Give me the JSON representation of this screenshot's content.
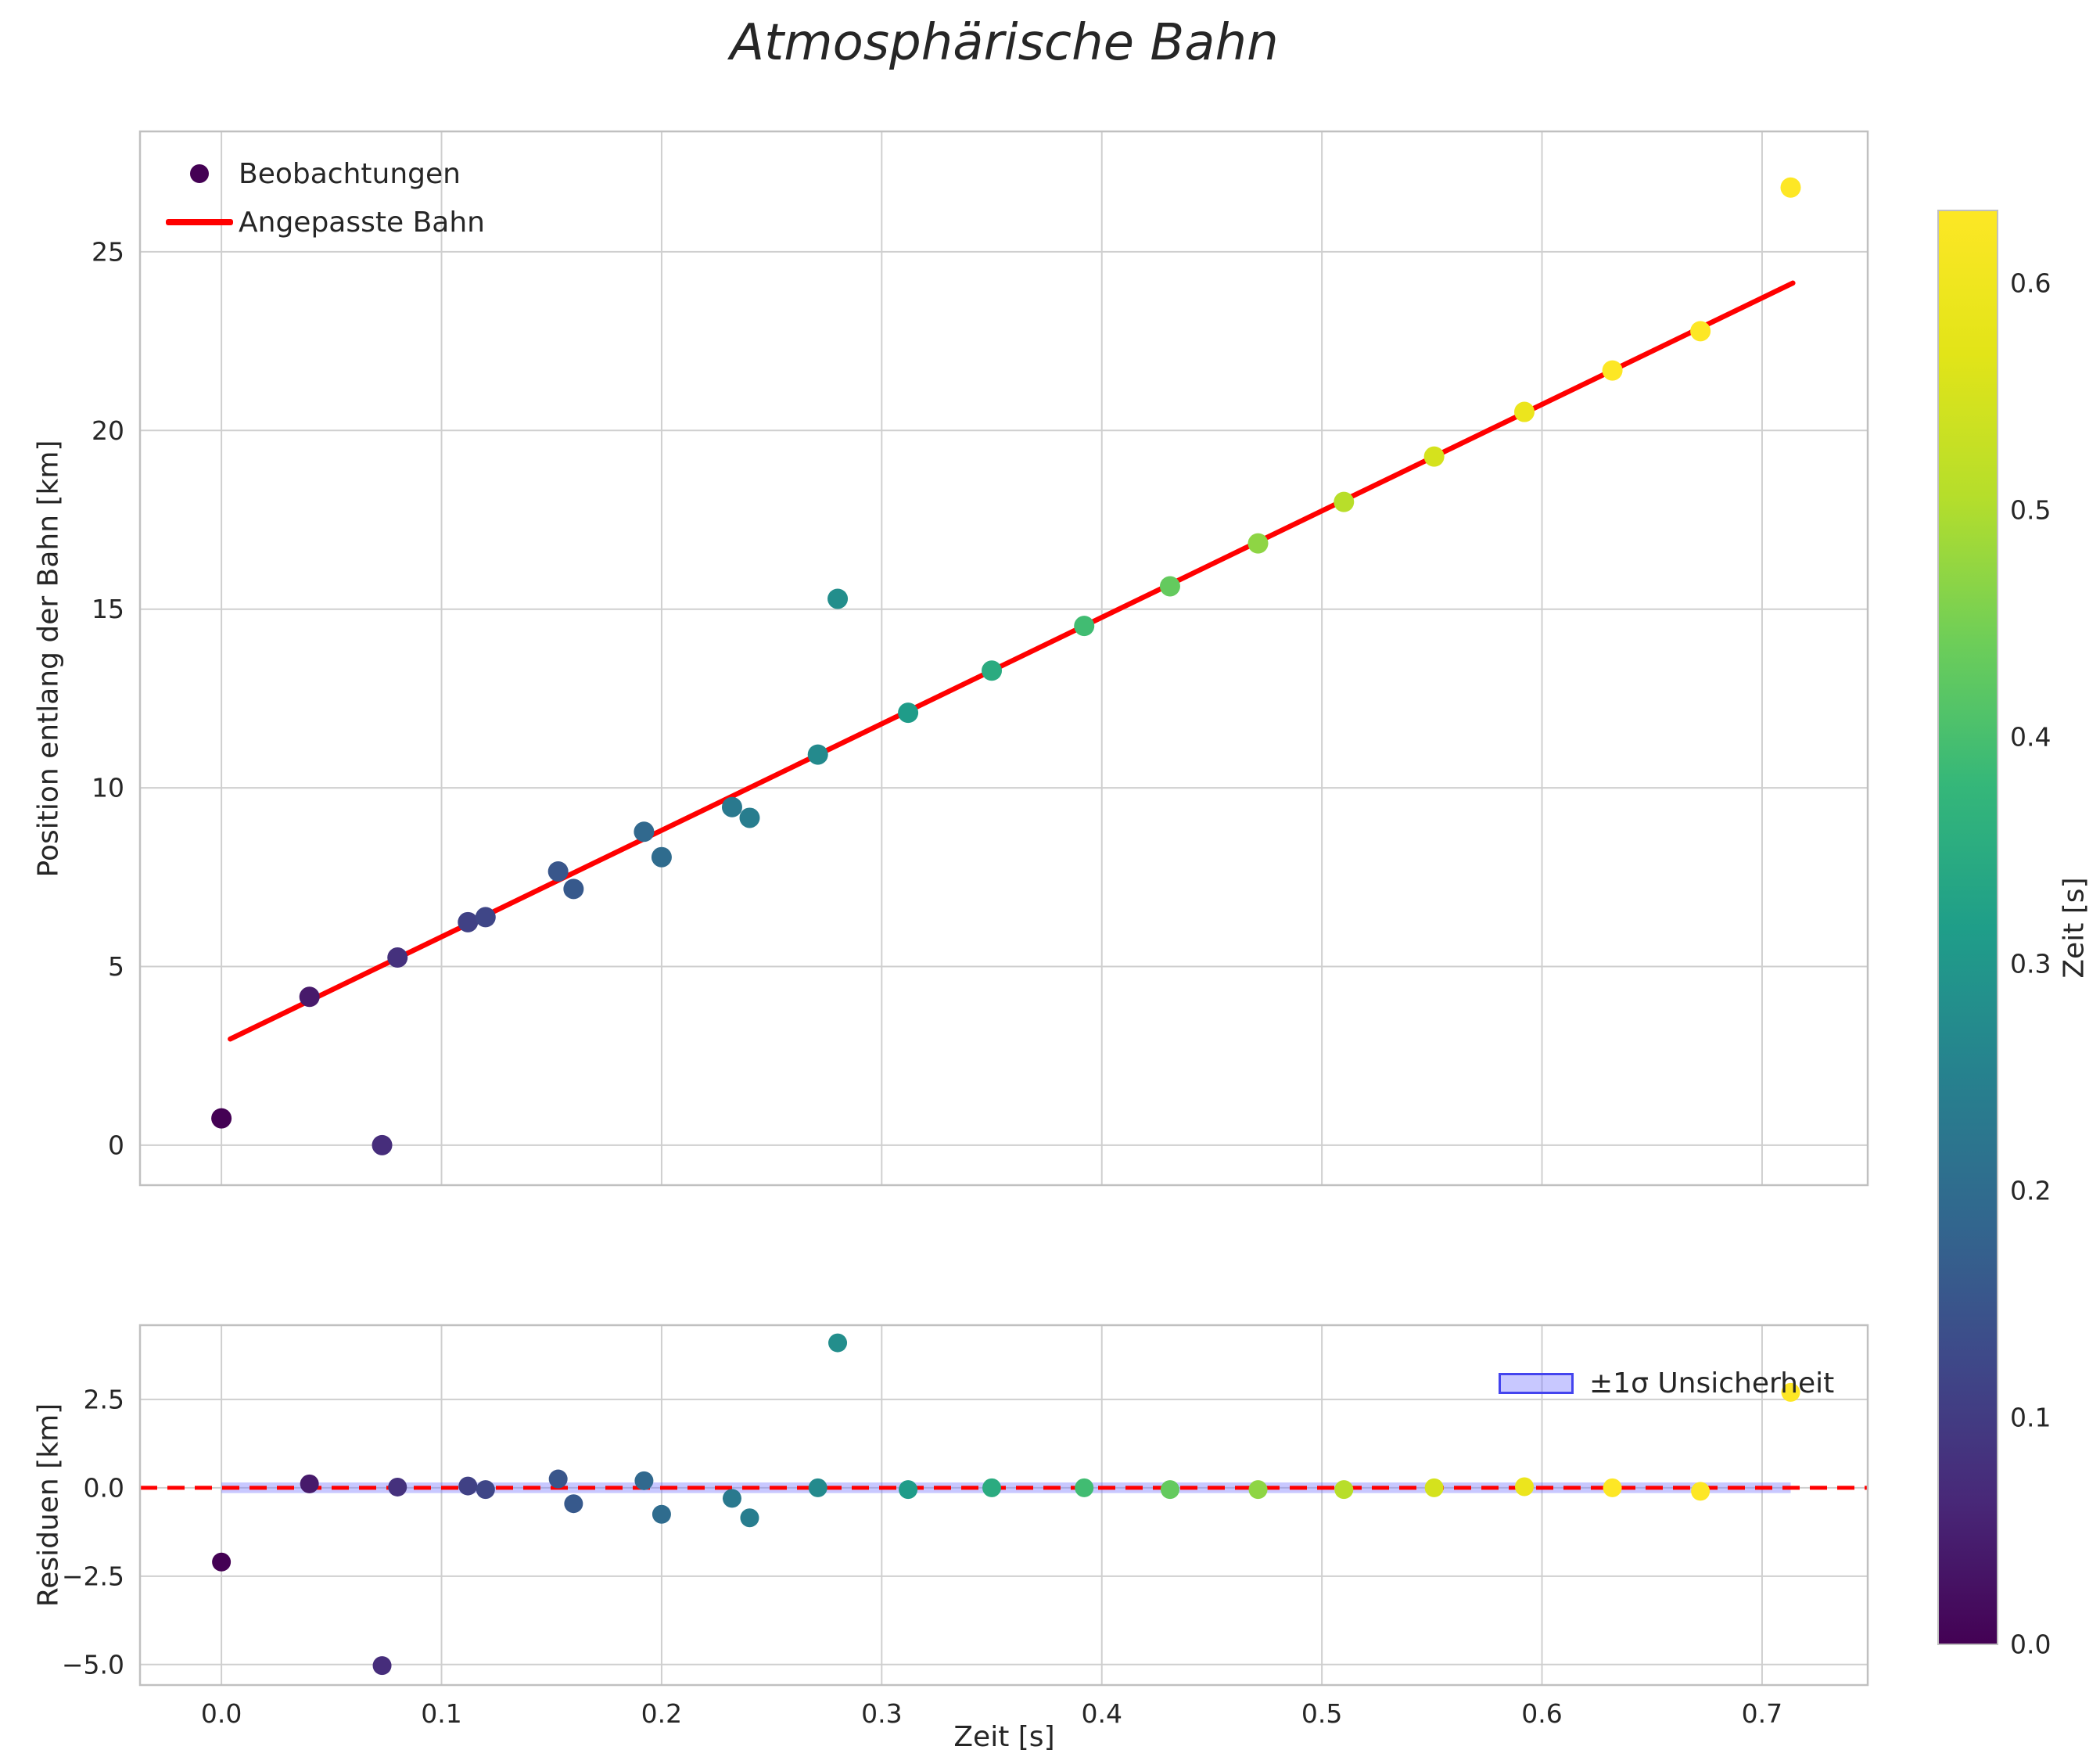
{
  "figure": {
    "title": "Atmosphärische Bahn"
  },
  "colorbar": {
    "label": "Zeit [s]",
    "ticks": [
      0.0,
      0.1,
      0.2,
      0.3,
      0.4,
      0.5,
      0.6
    ],
    "vmin": 0.0,
    "vmax": 0.632,
    "colormap": "viridis"
  },
  "chart_data": [
    {
      "type": "scatter",
      "title": "Atmosphärische Bahn",
      "ylabel": "Position entlang der Bahn [km]",
      "legend": [
        "Beobachtungen",
        "Angepasste Bahn"
      ],
      "legend_marker_color": "#440154",
      "xlim": [
        -0.037,
        0.748
      ],
      "ylim": [
        -1.12,
        28.37
      ],
      "xticks": [
        0.0,
        0.1,
        0.2,
        0.3,
        0.4,
        0.5,
        0.6,
        0.7
      ],
      "yticks": [
        0,
        5,
        10,
        15,
        20,
        25
      ],
      "grid": true,
      "color_by": "t",
      "points": {
        "t": [
          0.0,
          0.04,
          0.073,
          0.08,
          0.112,
          0.12,
          0.153,
          0.16,
          0.192,
          0.2,
          0.232,
          0.24,
          0.271,
          0.28,
          0.312,
          0.35,
          0.392,
          0.431,
          0.471,
          0.51,
          0.551,
          0.592,
          0.632,
          0.672,
          0.713
        ],
        "y": [
          0.75,
          4.15,
          0.0,
          5.25,
          6.24,
          6.38,
          7.66,
          7.17,
          8.77,
          8.06,
          9.46,
          9.16,
          10.93,
          15.29,
          12.1,
          13.28,
          14.53,
          15.64,
          16.84,
          18.0,
          19.27,
          20.52,
          21.68,
          22.78,
          26.8
        ]
      },
      "fit_line": {
        "slope": 29.8,
        "intercept": 2.85,
        "t_start": 0.004,
        "t_end": 0.714,
        "color": "#ff0000"
      }
    },
    {
      "type": "scatter",
      "ylabel": "Residuen [km]",
      "xlabel": "Zeit [s]",
      "xlim": [
        -0.037,
        0.748
      ],
      "ylim": [
        -5.58,
        4.6
      ],
      "xticks": [
        0.0,
        0.1,
        0.2,
        0.3,
        0.4,
        0.5,
        0.6,
        0.7
      ],
      "yticks": [
        2.5,
        0.0,
        -2.5,
        -5.0
      ],
      "grid": true,
      "zero_line": {
        "color": "#ff0000",
        "style": "dashed"
      },
      "band": {
        "label": "±1σ Unsicherheit",
        "halfwidth": 0.15,
        "t_range": [
          0.0,
          0.713
        ],
        "fill": "rgba(110,110,255,0.38)"
      },
      "points": {
        "t": [
          0.0,
          0.04,
          0.073,
          0.08,
          0.112,
          0.12,
          0.153,
          0.16,
          0.192,
          0.2,
          0.232,
          0.24,
          0.271,
          0.28,
          0.312,
          0.35,
          0.392,
          0.431,
          0.471,
          0.51,
          0.551,
          0.592,
          0.632,
          0.672,
          0.713
        ],
        "residual": [
          -2.1,
          0.11,
          -5.03,
          0.02,
          0.05,
          -0.05,
          0.25,
          -0.45,
          0.2,
          -0.75,
          -0.3,
          -0.85,
          0.0,
          4.1,
          -0.05,
          0.0,
          0.0,
          -0.05,
          -0.05,
          -0.05,
          0.0,
          0.03,
          0.0,
          -0.1,
          2.7
        ]
      }
    }
  ]
}
